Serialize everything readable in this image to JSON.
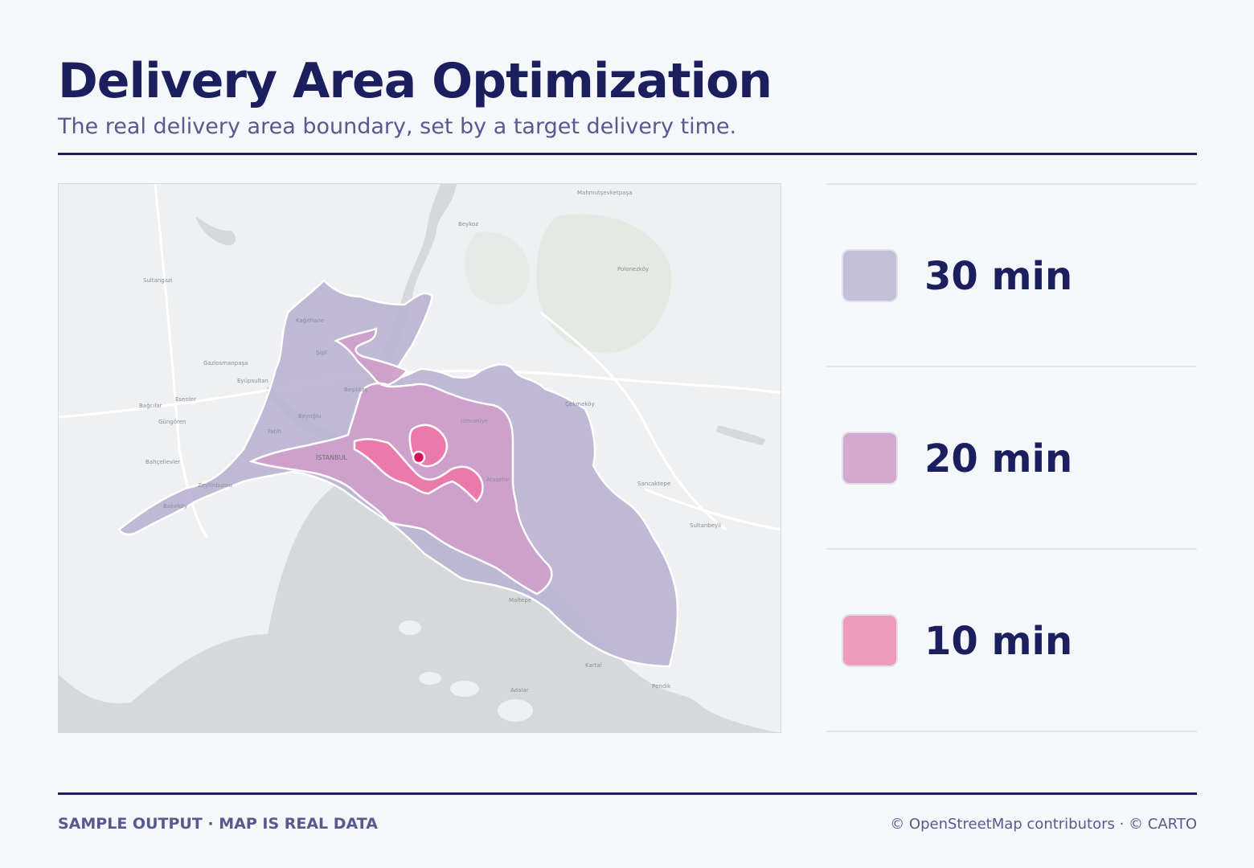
{
  "header": {
    "title": "Delivery Area Optimization",
    "subtitle": "The real delivery area boundary, set by a target delivery time."
  },
  "map": {
    "city_label": "İSTANBUL",
    "place_labels": [
      "Beykoz",
      "Şişli",
      "Beşiktaş",
      "Beyoğlu",
      "Fatih",
      "Eyüpsultan",
      "Gaziosmanpaşa",
      "Sultangazi",
      "Bağcılar",
      "Esenler",
      "Güngören",
      "Bahçelievler",
      "Zeytinburnu",
      "Bakırköy",
      "Ümraniye",
      "Ataşehir",
      "Çekmeköy",
      "Sancaktepe",
      "Sultanbeyli",
      "Maltepe",
      "Kartal",
      "Pendik",
      "Adalar",
      "Mahmutşevketpaşa",
      "Polonezköy",
      "Kağıthane"
    ],
    "colors": {
      "water": "#d5d9db",
      "land": "#eff0f1",
      "zone_30": "#b9b3d2",
      "zone_20": "#cf9fcb",
      "zone_10": "#ec78a8",
      "origin": "#d4145a"
    }
  },
  "legend": [
    {
      "label": "30 min",
      "color": "#c3bfd7"
    },
    {
      "label": "20 min",
      "color": "#d3a9cf"
    },
    {
      "label": "10 min",
      "color": "#f09abc"
    }
  ],
  "footer": {
    "left": "SAMPLE OUTPUT · MAP IS REAL DATA",
    "right": "© OpenStreetMap contributors · © CARTO"
  }
}
